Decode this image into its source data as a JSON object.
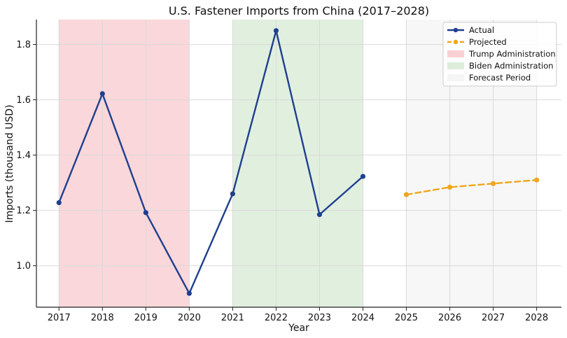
{
  "chart_data": {
    "type": "line",
    "title": "U.S. Fastener Imports from China (2017–2028)",
    "xlabel": "Year",
    "ylabel": "Imports (thousand USD)",
    "x_ticks": [
      2017,
      2018,
      2019,
      2020,
      2021,
      2022,
      2023,
      2024,
      2025,
      2026,
      2027,
      2028
    ],
    "xlim": [
      2016.48,
      2028.57
    ],
    "y_ticks": [
      1.0,
      1.2,
      1.4,
      1.6,
      1.8
    ],
    "y_tick_labels": [
      "1.0",
      "1.2",
      "1.4",
      "1.6",
      "1.8"
    ],
    "ylim": [
      0.85,
      1.89
    ],
    "grid": true,
    "legend_position": "top-right",
    "series": [
      {
        "name": "Actual",
        "color": "#1f3f8f",
        "style": "solid",
        "marker": "circle",
        "x": [
          2017,
          2018,
          2019,
          2020,
          2021,
          2022,
          2023,
          2024
        ],
        "values": [
          1.228,
          1.622,
          1.192,
          0.9,
          1.26,
          1.85,
          1.185,
          1.323
        ]
      },
      {
        "name": "Projected",
        "color": "#f0a61c",
        "style": "dashed",
        "marker": "circle",
        "x": [
          2025,
          2026,
          2027,
          2028
        ],
        "values": [
          1.257,
          1.284,
          1.297,
          1.31
        ]
      }
    ],
    "shaded_regions": [
      {
        "name": "Trump Administration",
        "from": 2017,
        "to": 2020,
        "color": "#f8c9cd"
      },
      {
        "name": "Biden Administration",
        "from": 2021,
        "to": 2024,
        "color": "#d7ead4"
      },
      {
        "name": "Forecast Period",
        "from": 2025,
        "to": 2028,
        "color": "#eeeeee"
      }
    ]
  }
}
